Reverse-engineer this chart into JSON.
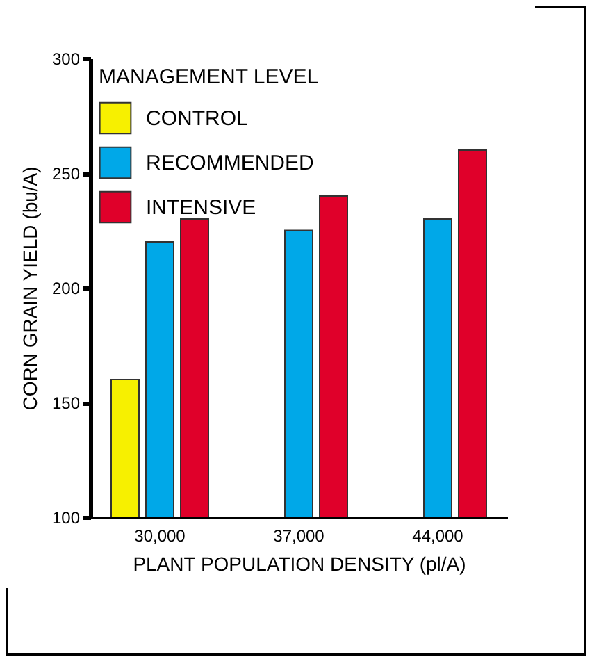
{
  "chart_data": {
    "type": "bar",
    "xlabel": "PLANT POPULATION DENSITY (pl/A)",
    "ylabel": "CORN GRAIN YIELD (bu/A)",
    "legend_title": "MANAGEMENT LEVEL",
    "categories": [
      "30,000",
      "37,000",
      "44,000"
    ],
    "series": [
      {
        "name": "CONTROL",
        "color": "#f7f000",
        "values": [
          160,
          null,
          null
        ]
      },
      {
        "name": "RECOMMENDED",
        "color": "#00a8e8",
        "values": [
          220,
          225,
          230
        ]
      },
      {
        "name": "INTENSIVE",
        "color": "#e0002a",
        "values": [
          230,
          240,
          260
        ]
      }
    ],
    "ylim": [
      100,
      300
    ],
    "yticks": [
      100,
      150,
      200,
      250,
      300
    ],
    "legend": "top left"
  }
}
